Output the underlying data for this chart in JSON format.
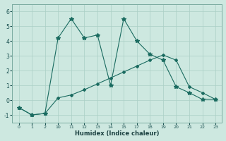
{
  "xlabel": "Humidex (Indice chaleur)",
  "xlabels": [
    "0",
    "1",
    "2",
    "10",
    "11",
    "12",
    "13",
    "14",
    "15",
    "17",
    "18",
    "19",
    "20",
    "21",
    "22",
    "23"
  ],
  "ylim": [
    -1.5,
    6.5
  ],
  "yticks": [
    -1,
    0,
    1,
    2,
    3,
    4,
    5,
    6
  ],
  "background_color": "#cde8e0",
  "grid_color": "#aacfc5",
  "line_color": "#1a6b60",
  "series1_y": [
    -0.5,
    -1.0,
    -0.9,
    4.2,
    5.5,
    4.2,
    4.4,
    1.0,
    5.5,
    4.0,
    3.1,
    2.7,
    0.9,
    0.5,
    0.05,
    0.05
  ],
  "series2_y": [
    -0.5,
    -1.0,
    -0.9,
    0.15,
    0.35,
    0.7,
    1.1,
    1.5,
    1.9,
    2.3,
    2.7,
    3.05,
    2.7,
    0.9,
    0.5,
    0.05
  ]
}
